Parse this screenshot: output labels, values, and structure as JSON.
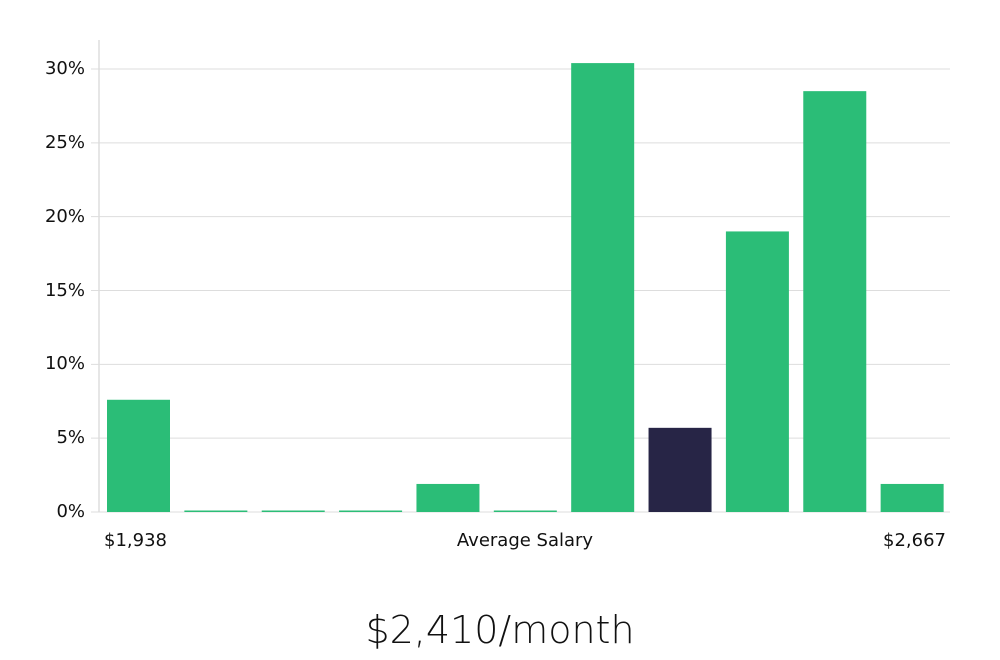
{
  "chart_data": {
    "type": "bar",
    "title": "",
    "xlabel": "Average Salary",
    "ylabel": "",
    "x_range_labels": {
      "min": "$1,938",
      "max": "$2,667"
    },
    "categories": [
      "1",
      "2",
      "3",
      "4",
      "5",
      "6",
      "7",
      "8",
      "9",
      "10",
      "11"
    ],
    "values": [
      7.6,
      0,
      0,
      0,
      1.9,
      0,
      30.4,
      5.7,
      19.0,
      28.5,
      1.9
    ],
    "highlight_index": 7,
    "colors": {
      "default": "#2bbd77",
      "highlight": "#272546",
      "grid": "#dddddd",
      "axis": "#cccccc"
    },
    "yticks": [
      "0%",
      "5%",
      "10%",
      "15%",
      "20%",
      "25%",
      "30%"
    ],
    "ylim": [
      0,
      32
    ],
    "grid": true,
    "legend": "none"
  },
  "summary": {
    "value_label": "$2,410/month"
  }
}
